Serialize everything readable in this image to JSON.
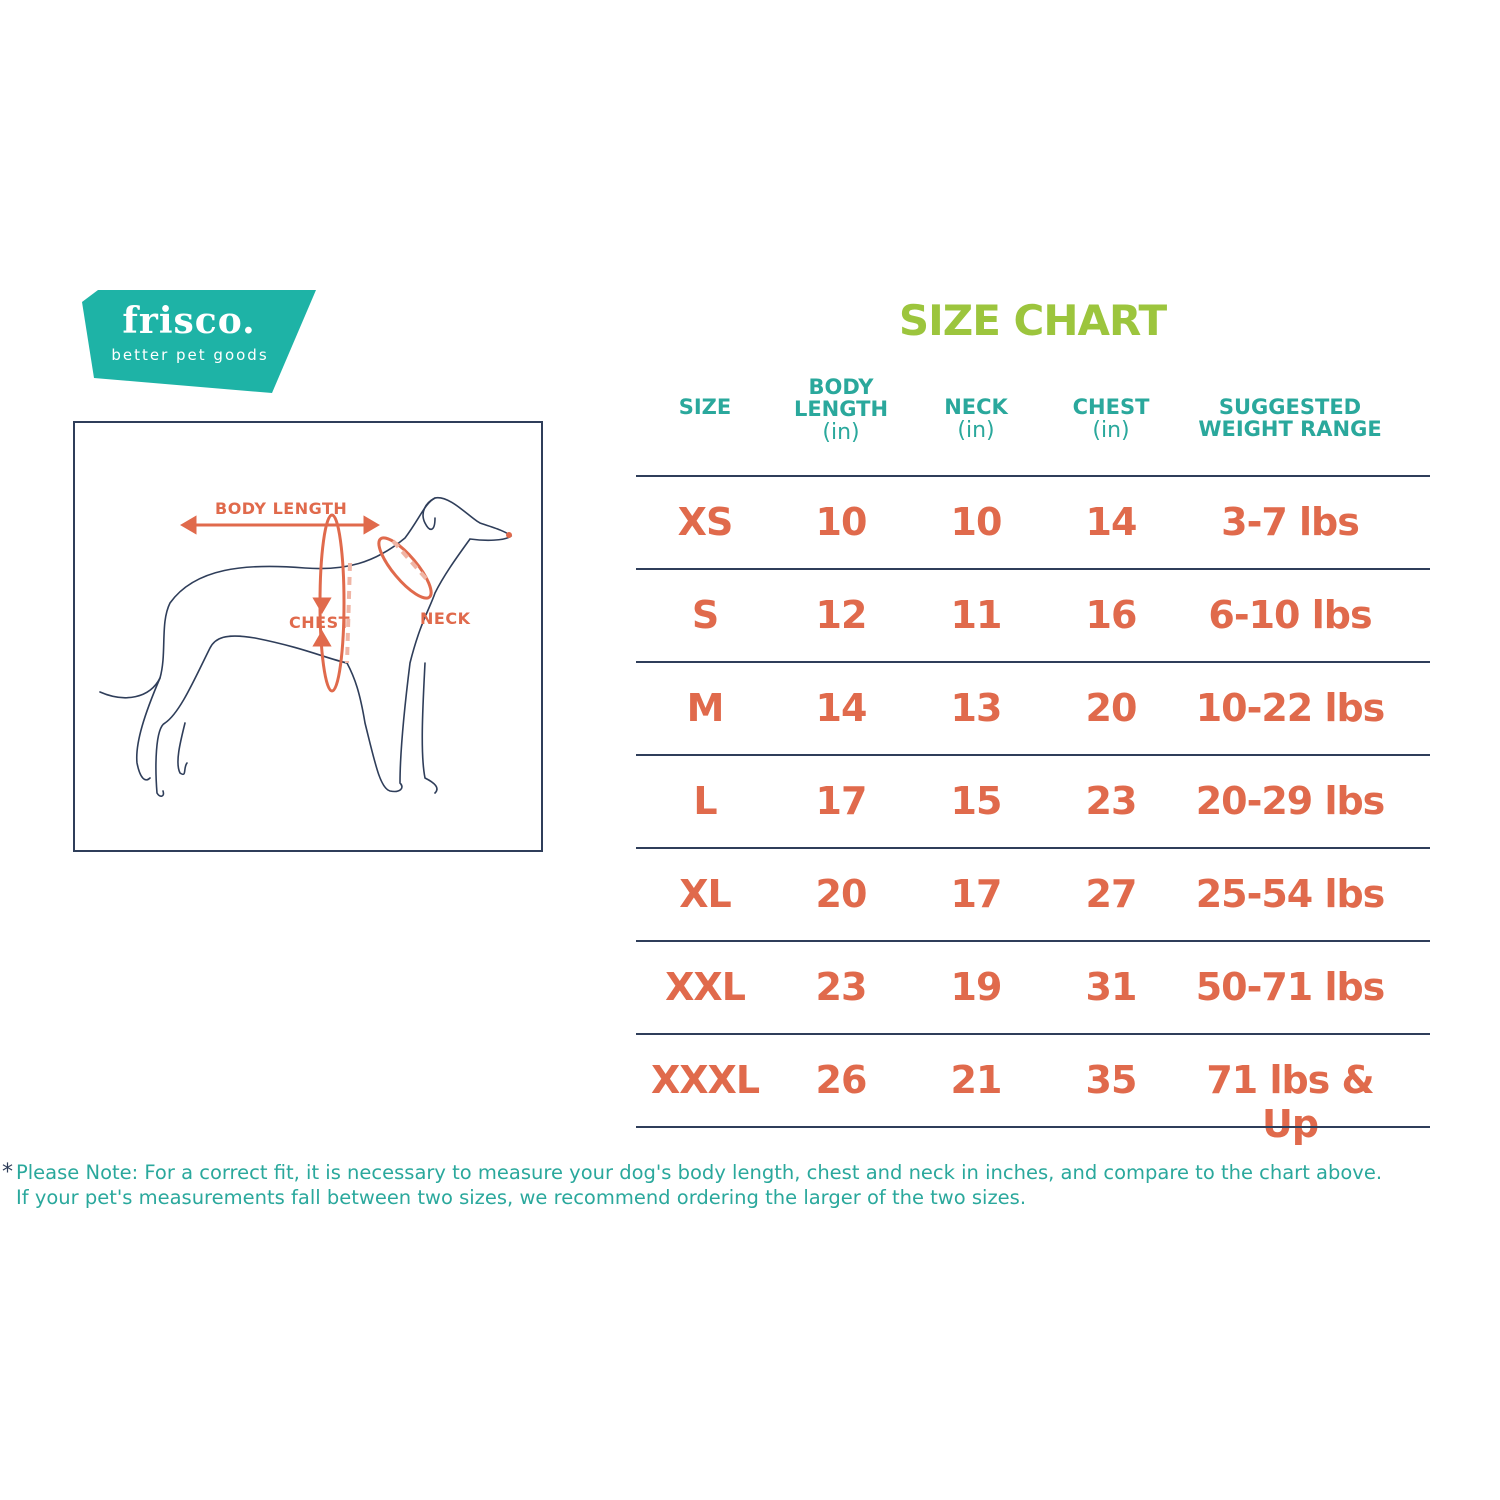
{
  "brand": {
    "name": "frisco.",
    "tagline": "better pet goods",
    "color": "#1eb3a6"
  },
  "diagram": {
    "labels": {
      "body_length": "BODY LENGTH",
      "chest": "CHEST",
      "neck": "NECK"
    },
    "accent": "#e06a4c"
  },
  "title": "SIZE CHART",
  "table": {
    "headers": [
      {
        "label": "SIZE",
        "unit": ""
      },
      {
        "label": "BODY LENGTH",
        "unit": "(in)"
      },
      {
        "label": "NECK",
        "unit": "(in)"
      },
      {
        "label": "CHEST",
        "unit": "(in)"
      },
      {
        "label": "SUGGESTED WEIGHT RANGE",
        "unit": ""
      }
    ],
    "rows": [
      [
        "XS",
        "10",
        "10",
        "14",
        "3-7 lbs"
      ],
      [
        "S",
        "12",
        "11",
        "16",
        "6-10 lbs"
      ],
      [
        "M",
        "14",
        "13",
        "20",
        "10-22 lbs"
      ],
      [
        "L",
        "17",
        "15",
        "23",
        "20-29 lbs"
      ],
      [
        "XL",
        "20",
        "17",
        "27",
        "25-54 lbs"
      ],
      [
        "XXL",
        "23",
        "19",
        "31",
        "50-71 lbs"
      ],
      [
        "XXXL",
        "26",
        "21",
        "35",
        "71 lbs & Up"
      ]
    ]
  },
  "note": {
    "marker": "*",
    "line1": "Please Note: For a correct fit, it is necessary to measure your dog's body length, chest and neck in inches, and compare to the chart above.",
    "line2": "If your pet's measurements fall between two sizes, we recommend ordering the larger of the two sizes."
  }
}
